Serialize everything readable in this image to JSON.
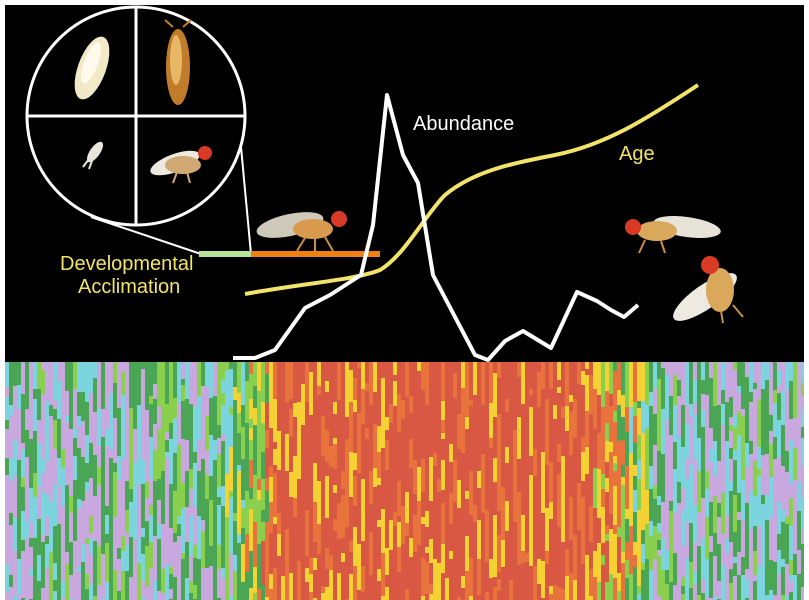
{
  "labels": {
    "abundance": "Abundance",
    "age": "Age",
    "developmental": "Developmental",
    "acclimation": "Acclimation"
  },
  "colors": {
    "background": "#000000",
    "abundance_line": "#ffffff",
    "age_line": "#f2e36b",
    "label_yellow": "#f2e36b",
    "dev_bar_light": "#b6e59a",
    "dev_bar_orange": "#f07f14"
  },
  "icons": {
    "life_stage_circle": "fly-life-cycle-icon",
    "larva": "larva-icon",
    "pupa": "pupa-icon",
    "egg": "egg-icon",
    "young_fly": "young-fly-icon",
    "fly_on_bar": "fruit-fly-icon",
    "old_flies": "old-flies-icon"
  },
  "heatmap_palette": [
    "#4aa655",
    "#8bcf4e",
    "#f5d234",
    "#e9733c",
    "#d95843",
    "#7bd4de",
    "#c9a8e0"
  ]
}
